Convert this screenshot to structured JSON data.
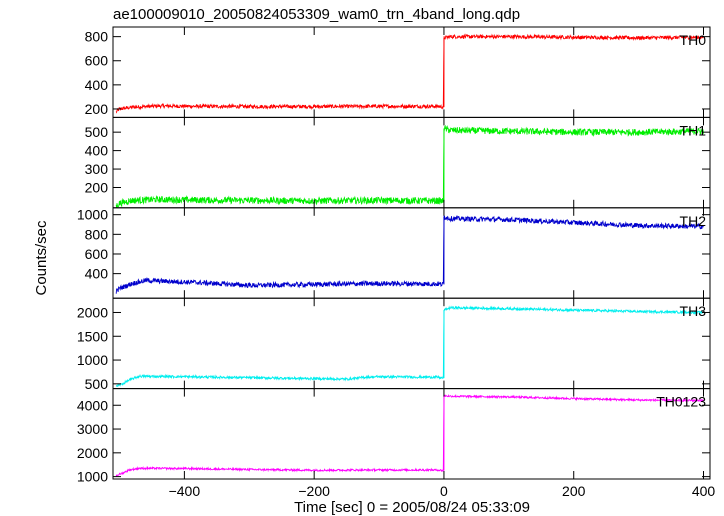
{
  "chart_data": {
    "type": "line",
    "title": "ae100009010_20050824053309_wam0_trn_4band_long.qdp",
    "xlabel": "Time [sec] 0 = 2005/08/24 05:33:09",
    "ylabel": "Counts/sec",
    "xlim": [
      -510,
      410
    ],
    "xticks": [
      -400,
      -200,
      0,
      200,
      400
    ],
    "xtick_labels": [
      "−400",
      "−200",
      "0",
      "200",
      "400"
    ],
    "grid": false,
    "step_time": 0,
    "panels": [
      {
        "name": "TH0",
        "color": "#ff0000",
        "ylim": [
          130,
          880
        ],
        "yticks": [
          200,
          400,
          600,
          800
        ],
        "series": {
          "x": [
            -505,
            -500,
            -480,
            -440,
            -380,
            -300,
            -200,
            -100,
            -10,
            -1,
            0,
            10,
            100,
            200,
            300,
            400
          ],
          "y": [
            175,
            200,
            215,
            225,
            222,
            220,
            220,
            222,
            222,
            215,
            790,
            800,
            800,
            795,
            790,
            795
          ]
        },
        "noise": 15
      },
      {
        "name": "TH1",
        "color": "#00ee00",
        "ylim": [
          90,
          580
        ],
        "yticks": [
          200,
          300,
          400,
          500
        ],
        "series": {
          "x": [
            -505,
            -500,
            -480,
            -440,
            -380,
            -300,
            -200,
            -100,
            -10,
            -1,
            0,
            10,
            100,
            200,
            300,
            400
          ],
          "y": [
            100,
            115,
            130,
            135,
            132,
            130,
            128,
            130,
            128,
            125,
            520,
            510,
            505,
            500,
            500,
            505
          ]
        },
        "noise": 18
      },
      {
        "name": "TH2",
        "color": "#0000cc",
        "ylim": [
          150,
          1070
        ],
        "yticks": [
          400,
          600,
          800,
          1000
        ],
        "series": {
          "x": [
            -505,
            -500,
            -480,
            -460,
            -380,
            -300,
            -200,
            -100,
            -10,
            -1,
            0,
            10,
            100,
            200,
            300,
            400
          ],
          "y": [
            220,
            250,
            300,
            330,
            310,
            280,
            290,
            300,
            295,
            290,
            980,
            960,
            950,
            920,
            890,
            880
          ]
        },
        "noise": 25
      },
      {
        "name": "TH3",
        "color": "#00eeee",
        "ylim": [
          400,
          2300
        ],
        "yticks": [
          500,
          1000,
          1500,
          2000
        ],
        "series": {
          "x": [
            -505,
            -495,
            -485,
            -470,
            -400,
            -300,
            -200,
            -150,
            -120,
            -100,
            -10,
            -1,
            0,
            10,
            100,
            200,
            300,
            400
          ],
          "y": [
            450,
            500,
            580,
            660,
            650,
            630,
            610,
            600,
            640,
            650,
            640,
            620,
            2050,
            2100,
            2080,
            2050,
            2020,
            2000
          ]
        },
        "noise": 25
      },
      {
        "name": "TH0123",
        "color": "#ff00ff",
        "ylim": [
          900,
          4700
        ],
        "yticks": [
          1000,
          2000,
          3000,
          4000
        ],
        "series": {
          "x": [
            -505,
            -495,
            -485,
            -470,
            -400,
            -300,
            -200,
            -100,
            -10,
            -1,
            0,
            10,
            100,
            200,
            300,
            400
          ],
          "y": [
            1050,
            1150,
            1280,
            1350,
            1340,
            1300,
            1270,
            1280,
            1280,
            1250,
            4400,
            4380,
            4350,
            4280,
            4220,
            4200
          ]
        },
        "noise": 40
      }
    ]
  }
}
